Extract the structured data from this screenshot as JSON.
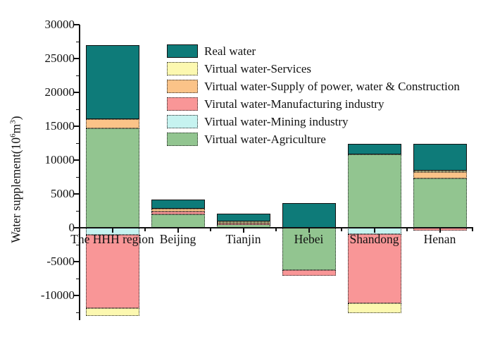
{
  "figure": {
    "ylabel": {
      "prefix": "Water supplement(10",
      "sup1": "6",
      "mid": "m",
      "sup2": "3",
      "suffix": ")"
    }
  },
  "chart_data": {
    "type": "bar",
    "subtype": "stacked",
    "title": "",
    "xlabel": "",
    "ylabel": "Water supplement(10^6 m^3)",
    "categories": [
      "The HHH region",
      "Beijing",
      "Tianjin",
      "Hebei",
      "Shandong",
      "Henan"
    ],
    "ylim": [
      -13400,
      30000
    ],
    "yticks_major": [
      30000,
      25000,
      20000,
      15000,
      10000,
      5000,
      0,
      -5000,
      -10000
    ],
    "ytick_minor_step": 2500,
    "grid": false,
    "legend_position": "upper-right-inside",
    "stack_order_bottom_to_top": [
      "Virtual water-Agriculture",
      "Virtual water-Mining industry",
      "Virutal water-Manufacturing industry",
      "Virtual water-Supply of power, water & Construction",
      "Virtual water-Services",
      "Real water"
    ],
    "series": [
      {
        "name": "Real water",
        "color": "#0e7b79",
        "border_style": "solid",
        "values": [
          10900,
          1400,
          1100,
          3700,
          1500,
          3900
        ]
      },
      {
        "name": "Virtual water-Services",
        "color": "#fcf8b0",
        "border_style": "dotted",
        "values": [
          -1200,
          0,
          100,
          0,
          -1500,
          200
        ]
      },
      {
        "name": "Virtual water-Supply of power, water & Construction",
        "color": "#fbc388",
        "border_style": "dotted",
        "values": [
          1400,
          350,
          200,
          0,
          0,
          1000
        ]
      },
      {
        "name": "Virutal water-Manufacturing industry",
        "color": "#f99697",
        "border_style": "dotted",
        "values": [
          -10800,
          450,
          200,
          -900,
          -10200,
          -400
        ]
      },
      {
        "name": "Virtual water-Mining industry",
        "color": "#c6f3f0",
        "border_style": "dotted",
        "values": [
          -1000,
          0,
          0,
          0,
          -900,
          0
        ]
      },
      {
        "name": "Virtual water-Agriculture",
        "color": "#92c590",
        "border_style": "dotted",
        "values": [
          14700,
          2000,
          500,
          -6200,
          10900,
          7300
        ]
      }
    ]
  }
}
